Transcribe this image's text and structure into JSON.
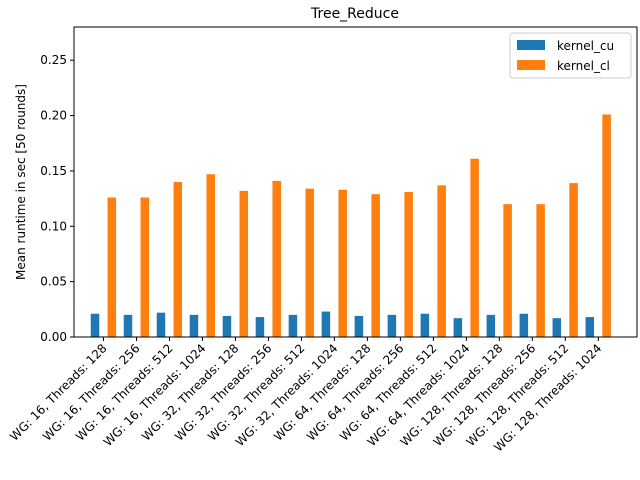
{
  "chart_data": {
    "type": "bar",
    "title": "Tree_Reduce",
    "xlabel": "",
    "ylabel": "Mean runtime in sec [50 rounds]",
    "ylim": [
      0,
      0.28
    ],
    "yticks": [
      0.0,
      0.05,
      0.1,
      0.15,
      0.2,
      0.25
    ],
    "grid": false,
    "legend_position": "top-right",
    "categories": [
      "WG: 16, Threads: 128",
      "WG: 16, Threads: 256",
      "WG: 16, Threads: 512",
      "WG: 16, Threads: 1024",
      "WG: 32, Threads: 128",
      "WG: 32, Threads: 256",
      "WG: 32, Threads: 512",
      "WG: 32, Threads: 1024",
      "WG: 64, Threads: 128",
      "WG: 64, Threads: 256",
      "WG: 64, Threads: 512",
      "WG: 64, Threads: 1024",
      "WG: 128, Threads: 128",
      "WG: 128, Threads: 256",
      "WG: 128, Threads: 512",
      "WG: 128, Threads: 1024"
    ],
    "series": [
      {
        "name": "kernel_cu",
        "color": "#1f77b4",
        "values": [
          0.021,
          0.02,
          0.022,
          0.02,
          0.019,
          0.018,
          0.02,
          0.023,
          0.019,
          0.02,
          0.021,
          0.017,
          0.02,
          0.021,
          0.017,
          0.018
        ]
      },
      {
        "name": "kernel_cl",
        "color": "#ff7f0e",
        "values": [
          0.126,
          0.126,
          0.14,
          0.147,
          0.132,
          0.141,
          0.134,
          0.133,
          0.129,
          0.131,
          0.137,
          0.161,
          0.12,
          0.12,
          0.139,
          0.201
        ]
      }
    ]
  }
}
